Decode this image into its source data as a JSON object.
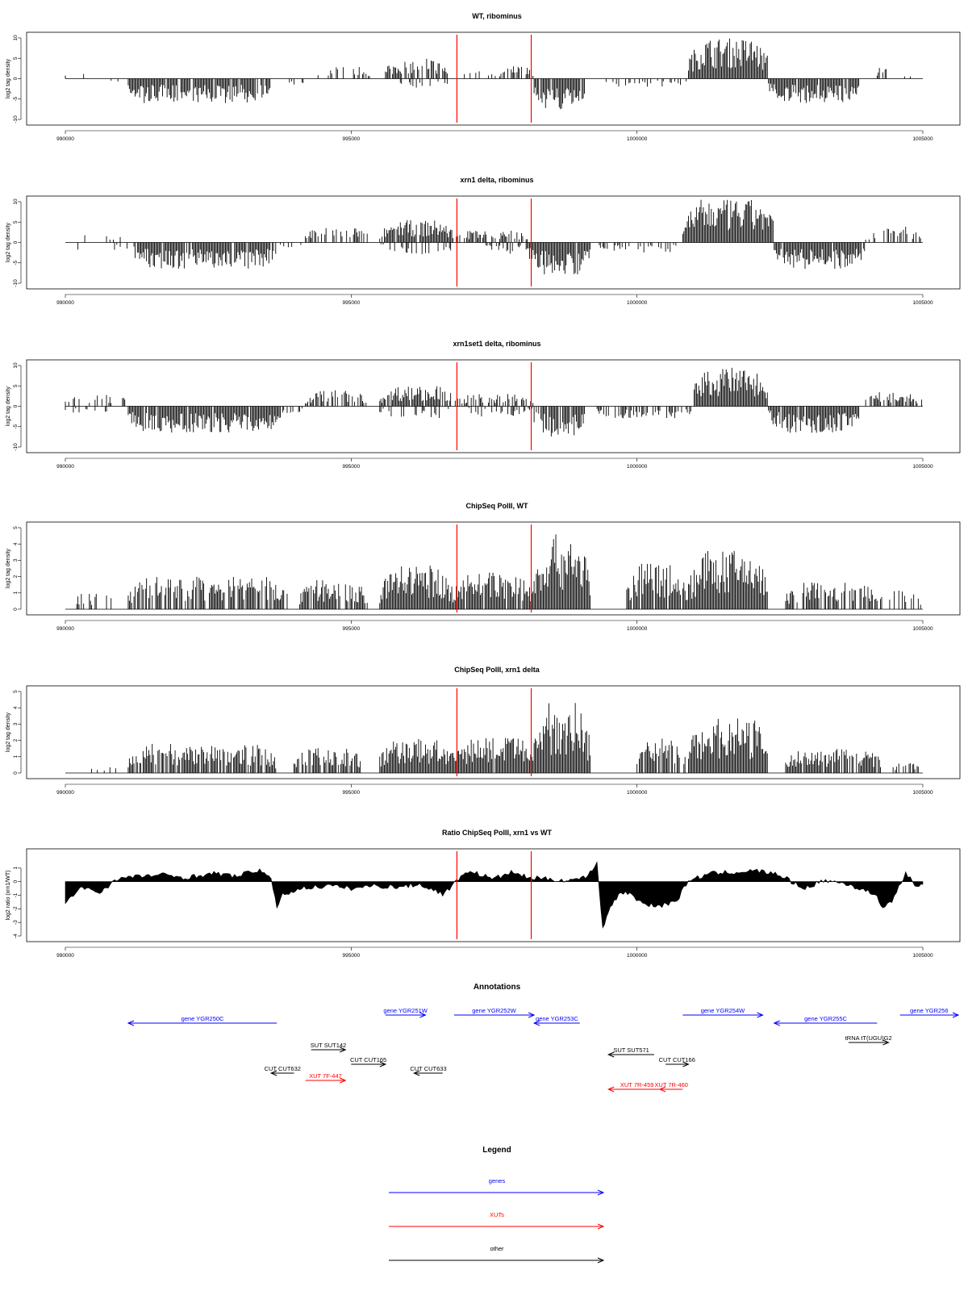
{
  "colors": {
    "gene": "#0000ff",
    "xut": "#ff0000",
    "other": "#000000",
    "marker": "#ff0000",
    "bar": "#000000"
  },
  "xaxis": {
    "ticks": [
      990000,
      995000,
      1000000,
      1005000
    ],
    "range": [
      990000,
      1005000
    ]
  },
  "marker_positions": [
    996850,
    998150
  ],
  "chart_data": [
    {
      "type": "bar",
      "title": "WT, ribominus",
      "ylabel": "log2 tag density",
      "ylim": [
        -10,
        10
      ],
      "yticks": [
        "-10",
        "-5",
        "0",
        "5",
        "10"
      ],
      "segments": [
        {
          "start": 990000,
          "end": 990700,
          "sign": 1,
          "amp": 1.5,
          "density": 0.08
        },
        {
          "start": 990700,
          "end": 991100,
          "sign": -1,
          "amp": 1.5,
          "density": 0.1
        },
        {
          "start": 991100,
          "end": 993600,
          "sign": -1,
          "amp": 6,
          "density": 0.95
        },
        {
          "start": 993600,
          "end": 994200,
          "sign": -1,
          "amp": 2,
          "density": 0.15
        },
        {
          "start": 994400,
          "end": 995400,
          "sign": 1,
          "amp": 3,
          "density": 0.35
        },
        {
          "start": 995600,
          "end": 996700,
          "sign": 1,
          "amp": 5,
          "density": 0.8
        },
        {
          "start": 995600,
          "end": 996700,
          "sign": -1,
          "amp": 2.5,
          "density": 0.25
        },
        {
          "start": 996900,
          "end": 997600,
          "sign": 1,
          "amp": 2,
          "density": 0.25
        },
        {
          "start": 997600,
          "end": 998200,
          "sign": 1,
          "amp": 3.5,
          "density": 0.6
        },
        {
          "start": 998200,
          "end": 999100,
          "sign": -1,
          "amp": 8,
          "density": 0.95
        },
        {
          "start": 999400,
          "end": 1000900,
          "sign": -1,
          "amp": 2,
          "density": 0.2
        },
        {
          "start": 1000900,
          "end": 1002300,
          "sign": 1,
          "amp": 10,
          "density": 1.0
        },
        {
          "start": 1002300,
          "end": 1003900,
          "sign": -1,
          "amp": 6,
          "density": 0.95
        },
        {
          "start": 1004200,
          "end": 1004400,
          "sign": 1,
          "amp": 5,
          "density": 0.5
        },
        {
          "start": 1004400,
          "end": 1005000,
          "sign": 1,
          "amp": 1,
          "density": 0.1
        }
      ]
    },
    {
      "type": "bar",
      "title": "xrn1 delta, ribominus",
      "ylabel": "log2 tag density",
      "ylim": [
        -10,
        10
      ],
      "yticks": [
        "-10",
        "-5",
        "0",
        "5",
        "10"
      ],
      "segments": [
        {
          "start": 990000,
          "end": 991200,
          "sign": 1,
          "amp": 2,
          "density": 0.12
        },
        {
          "start": 990000,
          "end": 991200,
          "sign": -1,
          "amp": 2,
          "density": 0.1
        },
        {
          "start": 991200,
          "end": 993700,
          "sign": -1,
          "amp": 6.5,
          "density": 0.95
        },
        {
          "start": 993700,
          "end": 994200,
          "sign": -1,
          "amp": 2,
          "density": 0.2
        },
        {
          "start": 994200,
          "end": 995300,
          "sign": 1,
          "amp": 4,
          "density": 0.6
        },
        {
          "start": 995500,
          "end": 996800,
          "sign": 1,
          "amp": 5.5,
          "density": 0.95
        },
        {
          "start": 995500,
          "end": 996800,
          "sign": -1,
          "amp": 3,
          "density": 0.3
        },
        {
          "start": 996800,
          "end": 998100,
          "sign": 1,
          "amp": 3,
          "density": 0.7
        },
        {
          "start": 997300,
          "end": 998100,
          "sign": -1,
          "amp": 3,
          "density": 0.4
        },
        {
          "start": 998100,
          "end": 999200,
          "sign": -1,
          "amp": 8,
          "density": 0.95
        },
        {
          "start": 999300,
          "end": 1000800,
          "sign": -1,
          "amp": 2.5,
          "density": 0.35
        },
        {
          "start": 1000800,
          "end": 1002400,
          "sign": 1,
          "amp": 10.5,
          "density": 1.0
        },
        {
          "start": 1002400,
          "end": 1004000,
          "sign": -1,
          "amp": 6.5,
          "density": 0.95
        },
        {
          "start": 1004000,
          "end": 1005000,
          "sign": 1,
          "amp": 4,
          "density": 0.5
        }
      ]
    },
    {
      "type": "bar",
      "title": "xrn1set1 delta, ribominus",
      "ylabel": "log2 tag density",
      "ylim": [
        -10,
        10
      ],
      "yticks": [
        "-10",
        "-5",
        "0",
        "5",
        "10"
      ],
      "segments": [
        {
          "start": 990000,
          "end": 991100,
          "sign": 1,
          "amp": 3,
          "density": 0.3
        },
        {
          "start": 990000,
          "end": 991100,
          "sign": -1,
          "amp": 2,
          "density": 0.2
        },
        {
          "start": 991100,
          "end": 993800,
          "sign": -1,
          "amp": 6.5,
          "density": 0.95
        },
        {
          "start": 993800,
          "end": 994200,
          "sign": -1,
          "amp": 3,
          "density": 0.3
        },
        {
          "start": 994200,
          "end": 995300,
          "sign": 1,
          "amp": 4,
          "density": 0.55
        },
        {
          "start": 995500,
          "end": 996800,
          "sign": 1,
          "amp": 5,
          "density": 0.85
        },
        {
          "start": 995500,
          "end": 996800,
          "sign": -1,
          "amp": 3,
          "density": 0.3
        },
        {
          "start": 996800,
          "end": 998200,
          "sign": 1,
          "amp": 3,
          "density": 0.6
        },
        {
          "start": 997000,
          "end": 998200,
          "sign": -1,
          "amp": 2.5,
          "density": 0.35
        },
        {
          "start": 998200,
          "end": 999100,
          "sign": -1,
          "amp": 8,
          "density": 0.9
        },
        {
          "start": 999300,
          "end": 1001000,
          "sign": -1,
          "amp": 3,
          "density": 0.5
        },
        {
          "start": 1001000,
          "end": 1002300,
          "sign": 1,
          "amp": 9.5,
          "density": 1.0
        },
        {
          "start": 1002300,
          "end": 1003900,
          "sign": -1,
          "amp": 6.5,
          "density": 0.95
        },
        {
          "start": 1004000,
          "end": 1005000,
          "sign": 1,
          "amp": 3.5,
          "density": 0.55
        }
      ]
    },
    {
      "type": "bar",
      "title": "ChipSeq PolII, WT",
      "ylabel": "log2 tag density",
      "ylim": [
        0,
        5
      ],
      "yticks": [
        "0",
        "1",
        "2",
        "3",
        "4",
        "5"
      ],
      "segments": [
        {
          "start": 990000,
          "end": 990900,
          "sign": 1,
          "amp": 1,
          "density": 0.25
        },
        {
          "start": 991100,
          "end": 993900,
          "sign": 1,
          "amp": 2,
          "density": 0.7
        },
        {
          "start": 994100,
          "end": 995300,
          "sign": 1,
          "amp": 1.8,
          "density": 0.85
        },
        {
          "start": 995500,
          "end": 996800,
          "sign": 1,
          "amp": 2.7,
          "density": 1.0
        },
        {
          "start": 996800,
          "end": 998200,
          "sign": 1,
          "amp": 2.3,
          "density": 0.9
        },
        {
          "start": 998200,
          "end": 999200,
          "sign": 1,
          "amp": 4.6,
          "density": 1.0
        },
        {
          "start": 999800,
          "end": 1000900,
          "sign": 1,
          "amp": 2.8,
          "density": 0.85
        },
        {
          "start": 1000900,
          "end": 1002300,
          "sign": 1,
          "amp": 3.6,
          "density": 1.0
        },
        {
          "start": 1002600,
          "end": 1004200,
          "sign": 1,
          "amp": 1.7,
          "density": 0.75
        },
        {
          "start": 1004200,
          "end": 1005000,
          "sign": 1,
          "amp": 1.2,
          "density": 0.35
        }
      ]
    },
    {
      "type": "bar",
      "title": "ChipSeq PolII, xrn1 delta",
      "ylabel": "log2 tag density",
      "ylim": [
        0,
        5
      ],
      "yticks": [
        "0",
        "1",
        "2",
        "3",
        "4",
        "5"
      ],
      "segments": [
        {
          "start": 990400,
          "end": 991100,
          "sign": 1,
          "amp": 0.4,
          "density": 0.3
        },
        {
          "start": 991100,
          "end": 993700,
          "sign": 1,
          "amp": 1.8,
          "density": 0.85
        },
        {
          "start": 994000,
          "end": 995200,
          "sign": 1,
          "amp": 1.6,
          "density": 0.75
        },
        {
          "start": 995500,
          "end": 996800,
          "sign": 1,
          "amp": 2.1,
          "density": 1.0
        },
        {
          "start": 996800,
          "end": 998200,
          "sign": 1,
          "amp": 2.2,
          "density": 0.95
        },
        {
          "start": 998200,
          "end": 999200,
          "sign": 1,
          "amp": 4.4,
          "density": 1.0
        },
        {
          "start": 1000000,
          "end": 1000900,
          "sign": 1,
          "amp": 2.2,
          "density": 0.8
        },
        {
          "start": 1000900,
          "end": 1002300,
          "sign": 1,
          "amp": 3.4,
          "density": 1.0
        },
        {
          "start": 1002600,
          "end": 1004300,
          "sign": 1,
          "amp": 1.5,
          "density": 0.8
        },
        {
          "start": 1004400,
          "end": 1005000,
          "sign": 1,
          "amp": 0.7,
          "density": 0.35
        }
      ]
    },
    {
      "type": "area",
      "title": "Ratio ChipSeq PolII, xrn1 vs WT",
      "ylabel": "log2 ratio (xrn1/WT)",
      "ylim": [
        -4,
        2
      ],
      "yticks": [
        "-4",
        "-3",
        "-2",
        "-1",
        "0",
        "1"
      ],
      "x": [
        990000,
        990100,
        990300,
        990600,
        990900,
        991300,
        991700,
        992100,
        992600,
        993000,
        993400,
        993600,
        993700,
        993800,
        994100,
        994600,
        995000,
        995400,
        995800,
        996200,
        996600,
        996800,
        997000,
        997200,
        997500,
        997800,
        998100,
        998400,
        998800,
        999100,
        999300,
        999400,
        999500,
        999600,
        999800,
        1000100,
        1000400,
        1000700,
        1000900,
        1001300,
        1001700,
        1002100,
        1002500,
        1002900,
        1003300,
        1003700,
        1004000,
        1004200,
        1004300,
        1004500,
        1004700,
        1004900,
        1005000
      ],
      "y": [
        -1.5,
        -1.2,
        -0.4,
        -0.8,
        0.2,
        0.4,
        0.5,
        0.3,
        0.6,
        0.4,
        0.9,
        0.1,
        -1.8,
        -1.0,
        -0.5,
        -0.3,
        -0.5,
        -0.3,
        -0.4,
        -0.2,
        -0.9,
        -0.2,
        0.8,
        0.6,
        0.2,
        0.7,
        0.3,
        0.2,
        0.1,
        0.3,
        1.4,
        -3.5,
        -2.2,
        -1.3,
        -0.7,
        -1.6,
        -1.8,
        -1.4,
        0.1,
        0.6,
        0.7,
        0.8,
        0.5,
        -0.5,
        0.1,
        -0.2,
        -0.7,
        -1.0,
        -2.0,
        -1.2,
        0.7,
        -0.5,
        -0.2
      ]
    }
  ],
  "annotations": {
    "title": "Annotations",
    "items": [
      {
        "label": "gene YGR250C",
        "kind": "gene",
        "start": 991100,
        "end": 993700,
        "dir": "left",
        "row": 1
      },
      {
        "label": "gene YGR251W",
        "kind": "gene",
        "start": 995600,
        "end": 996300,
        "dir": "right",
        "row": 0
      },
      {
        "label": "gene YGR252W",
        "kind": "gene",
        "start": 996800,
        "end": 998200,
        "dir": "right",
        "row": 0
      },
      {
        "label": "gene YGR253C",
        "kind": "gene",
        "start": 998200,
        "end": 999000,
        "dir": "left",
        "row": 1
      },
      {
        "label": "gene YGR254W",
        "kind": "gene",
        "start": 1000800,
        "end": 1002200,
        "dir": "right",
        "row": 0
      },
      {
        "label": "gene YGR255C",
        "kind": "gene",
        "start": 1002400,
        "end": 1004200,
        "dir": "left",
        "row": 1
      },
      {
        "label": "gene YGR256",
        "kind": "gene",
        "start": 1004600,
        "end": 1005700,
        "dir": "right",
        "row": 0
      },
      {
        "label": "tRNA tT(UGU)G2",
        "kind": "other",
        "start": 1003700,
        "end": 1004400,
        "dir": "right",
        "row": 2
      },
      {
        "label": "SUT SUT142",
        "kind": "other",
        "start": 994300,
        "end": 994900,
        "dir": "right",
        "row": 3
      },
      {
        "label": "SUT SUT571",
        "kind": "other",
        "start": 999500,
        "end": 1000300,
        "dir": "left",
        "row": 4
      },
      {
        "label": "CUT CUT165",
        "kind": "other",
        "start": 995000,
        "end": 995600,
        "dir": "right",
        "row": 5
      },
      {
        "label": "CUT CUT166",
        "kind": "other",
        "start": 1000500,
        "end": 1000900,
        "dir": "right",
        "row": 5
      },
      {
        "label": "CUT CUT632",
        "kind": "other",
        "start": 993600,
        "end": 994000,
        "dir": "left",
        "row": 6
      },
      {
        "label": "CUT CUT633",
        "kind": "other",
        "start": 996100,
        "end": 996600,
        "dir": "left",
        "row": 6
      },
      {
        "label": "XUT 7F-447",
        "kind": "xut",
        "start": 994200,
        "end": 994900,
        "dir": "right",
        "row": 7
      },
      {
        "label": "XUT 7R-459",
        "kind": "xut",
        "start": 999500,
        "end": 1000500,
        "dir": "left",
        "row": 8
      },
      {
        "label": "XUT 7R-460",
        "kind": "xut",
        "start": 1000400,
        "end": 1000800,
        "dir": "left",
        "row": 8
      }
    ]
  },
  "legend": {
    "title": "Legend",
    "items": [
      {
        "label": "genes",
        "kind": "gene"
      },
      {
        "label": "XUTs",
        "kind": "xut"
      },
      {
        "label": "other",
        "kind": "other"
      }
    ]
  }
}
